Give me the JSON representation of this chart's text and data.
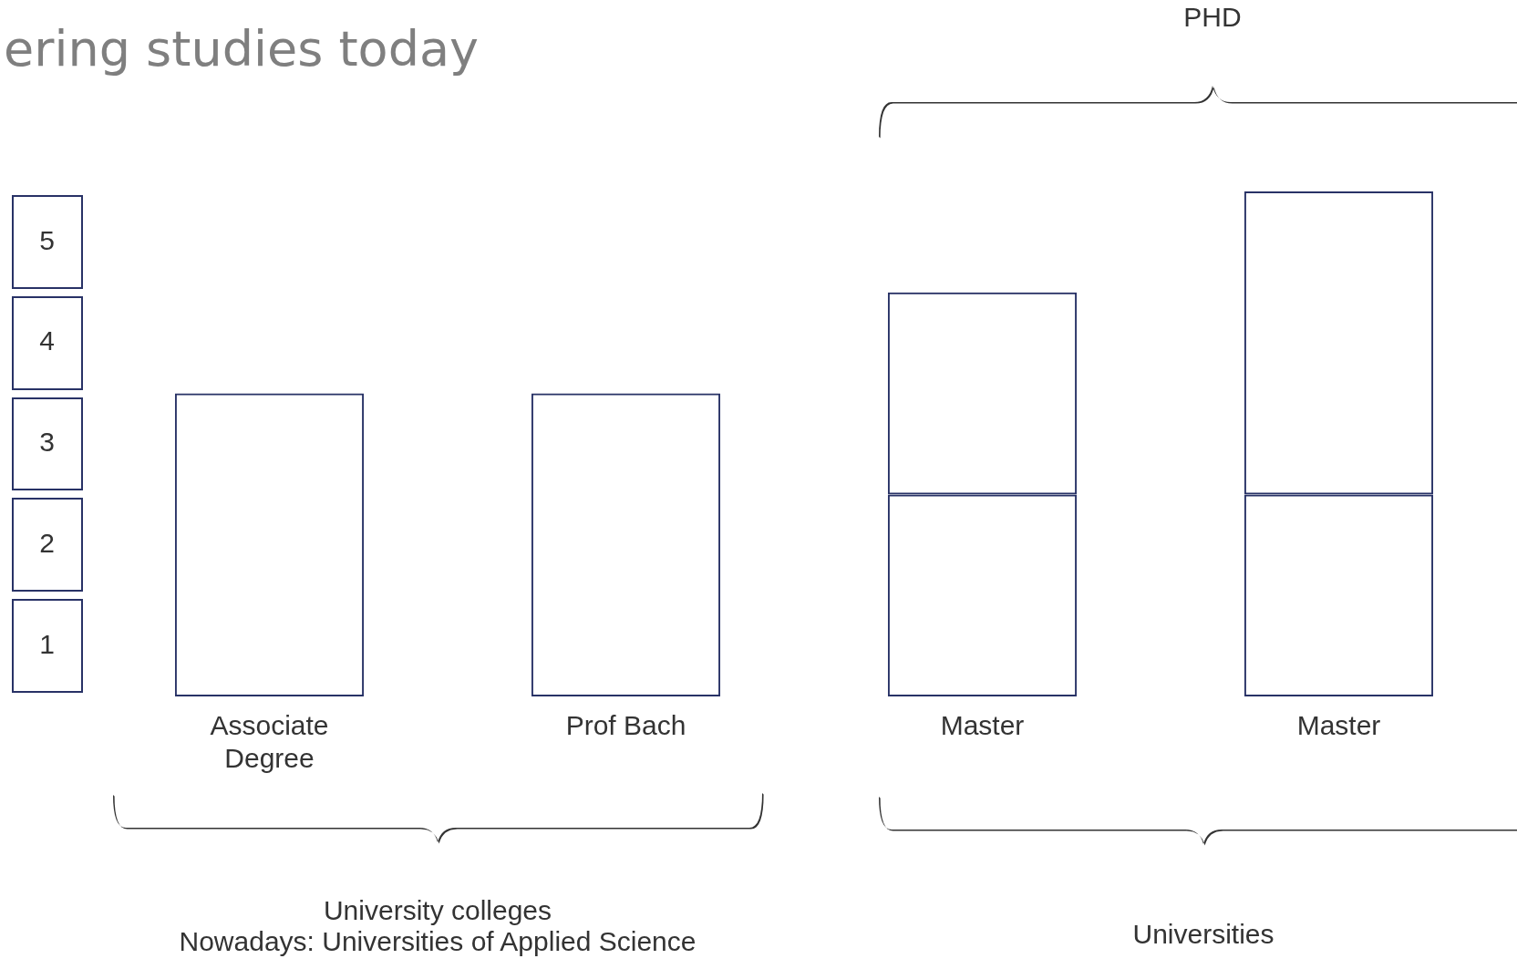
{
  "chart_data": {
    "type": "bar",
    "title": "ering studies today",
    "categories": [
      "Associate Degree",
      "Prof Bach",
      "Master",
      "Master"
    ],
    "series": [
      {
        "color": "#283266",
        "values": [
          3,
          3,
          2,
          2
        ]
      },
      {
        "color": "#283266",
        "values": [
          null,
          null,
          2,
          3
        ]
      }
    ],
    "stacked": true,
    "ylim": [
      0,
      5
    ],
    "yticks": [
      {
        "value": 0.5,
        "label": "1"
      },
      {
        "value": 1.5,
        "label": "2"
      },
      {
        "value": 2.5,
        "label": "3"
      },
      {
        "value": 3.5,
        "label": "4"
      },
      {
        "value": 4.5,
        "label": "5"
      }
    ],
    "grid": false,
    "legend": false,
    "annotations": [
      "PHD",
      "University colleges\nNowadays: Universities of Applied Science",
      "Universities"
    ]
  }
}
